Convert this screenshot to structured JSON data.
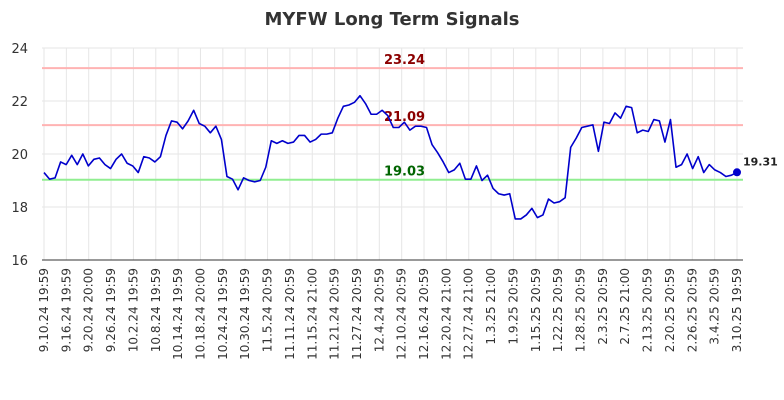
{
  "chart_data": {
    "type": "line",
    "title": "MYFW Long Term Signals",
    "xlabel": "",
    "ylabel": "",
    "ylim": [
      16,
      24
    ],
    "yticks": [
      16,
      18,
      20,
      22,
      24
    ],
    "grid": true,
    "x_tick_labels": [
      "9.10.24 19:59",
      "9.16.24 19:59",
      "9.20.24 20:00",
      "9.26.24 19:59",
      "10.2.24 19:59",
      "10.8.24 19:59",
      "10.14.24 19:59",
      "10.18.24 20:00",
      "10.24.24 19:59",
      "10.30.24 19:59",
      "11.5.24 20:59",
      "11.11.24 20:59",
      "11.15.24 21:00",
      "11.21.24 20:59",
      "11.27.24 20:59",
      "12.4.24 20:59",
      "12.10.24 20:59",
      "12.16.24 20:59",
      "12.20.24 21:00",
      "12.27.24 21:00",
      "1.3.25 21:00",
      "1.9.25 20:59",
      "1.15.25 20:59",
      "1.22.25 20:59",
      "1.28.25 20:59",
      "2.3.25 20:59",
      "2.7.25 21:00",
      "2.13.25 20:59",
      "2.20.25 20:59",
      "2.26.25 20:59",
      "3.4.25 20:59",
      "3.10.25 19:59"
    ],
    "series": [
      {
        "name": "",
        "color": "#0000cc",
        "values": [
          19.3,
          19.05,
          19.1,
          19.7,
          19.6,
          19.95,
          19.6,
          20.0,
          19.55,
          19.8,
          19.85,
          19.6,
          19.45,
          19.8,
          20.0,
          19.65,
          19.55,
          19.3,
          19.9,
          19.85,
          19.7,
          19.9,
          20.7,
          21.25,
          21.2,
          20.95,
          21.25,
          21.65,
          21.15,
          21.05,
          20.8,
          21.05,
          20.55,
          19.15,
          19.05,
          18.65,
          19.1,
          19.0,
          18.95,
          19.0,
          19.5,
          20.5,
          20.4,
          20.5,
          20.4,
          20.45,
          20.7,
          20.7,
          20.45,
          20.55,
          20.75,
          20.75,
          20.8,
          21.35,
          21.8,
          21.85,
          21.95,
          22.2,
          21.9,
          21.5,
          21.5,
          21.65,
          21.45,
          21.0,
          21.0,
          21.2,
          20.9,
          21.05,
          21.05,
          21.0,
          20.35,
          20.05,
          19.7,
          19.3,
          19.4,
          19.65,
          19.05,
          19.05,
          19.55,
          19.0,
          19.2,
          18.7,
          18.5,
          18.45,
          18.5,
          17.55,
          17.55,
          17.7,
          17.95,
          17.6,
          17.7,
          18.3,
          18.15,
          18.2,
          18.35,
          20.25,
          20.6,
          21.0,
          21.05,
          21.1,
          20.1,
          21.2,
          21.15,
          21.55,
          21.35,
          21.8,
          21.75,
          20.8,
          20.9,
          20.85,
          21.3,
          21.25,
          20.45,
          21.3,
          19.5,
          19.6,
          20.0,
          19.45,
          19.9,
          19.3,
          19.6,
          19.4,
          19.3,
          19.15,
          19.2,
          19.31
        ]
      }
    ],
    "levels": [
      {
        "value": 23.24,
        "label": "23.24",
        "line_color": "#ffb3b3",
        "text_color": "#8b0000"
      },
      {
        "value": 21.09,
        "label": "21.09",
        "line_color": "#ffb3b3",
        "text_color": "#8b0000"
      },
      {
        "value": 19.03,
        "label": "19.03",
        "line_color": "#90ee90",
        "text_color": "#006400"
      }
    ],
    "last_value": 19.31,
    "last_label": "19.31"
  }
}
